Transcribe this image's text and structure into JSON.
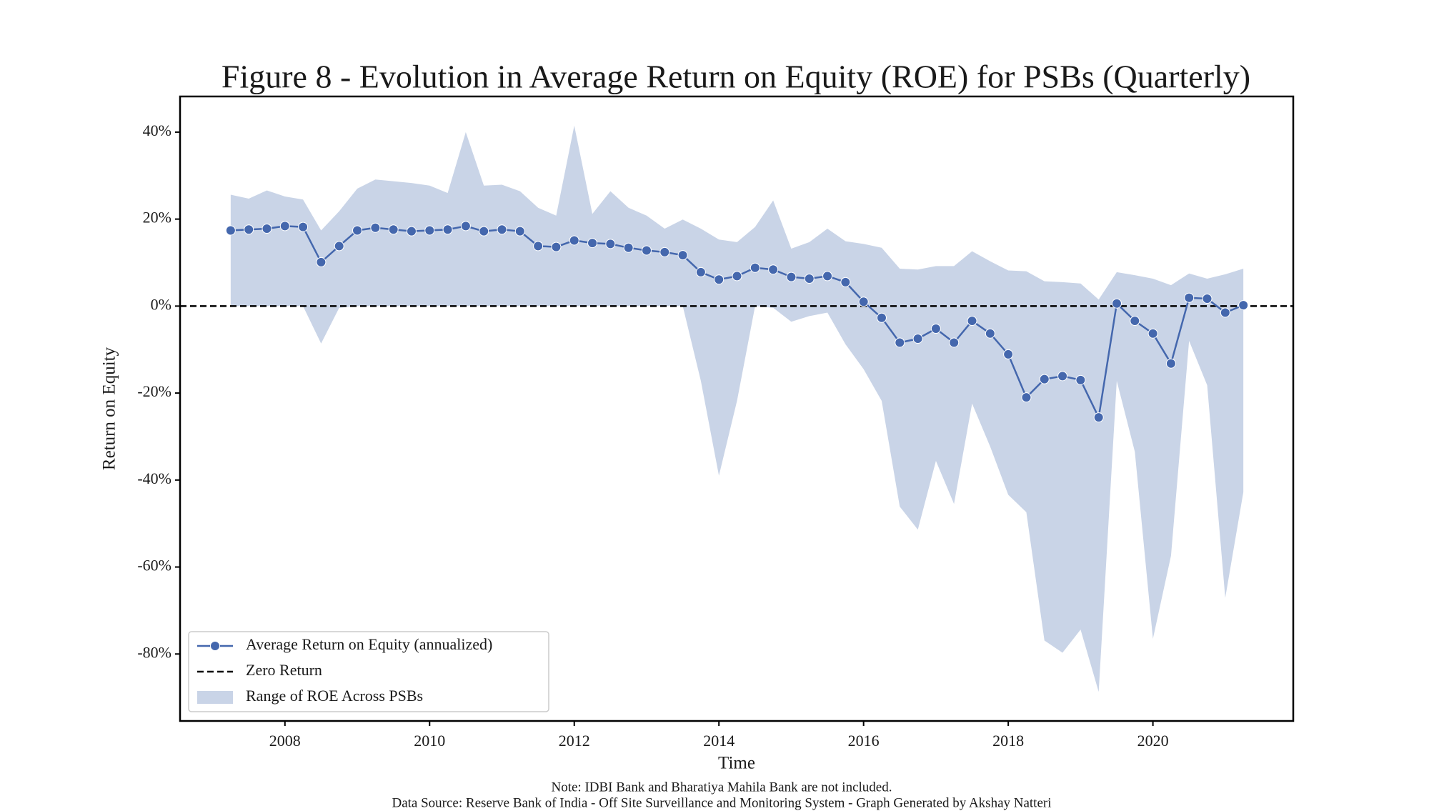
{
  "chart_data": {
    "type": "line",
    "title": "Figure 8 - Evolution in Average Return on Equity (ROE) for PSBs (Quarterly)",
    "xlabel": "Time",
    "ylabel": "Return on Equity",
    "notes": [
      "Note: IDBI Bank and Bharatiya Mahila Bank are not included.",
      "Data Source: Reserve Bank of India - Off Site Surveillance and Monitoring System - Graph Generated by Akshay Natteri"
    ],
    "x": [
      2007.25,
      2007.5,
      2007.75,
      2008.0,
      2008.25,
      2008.5,
      2008.75,
      2009.0,
      2009.25,
      2009.5,
      2009.75,
      2010.0,
      2010.25,
      2010.5,
      2010.75,
      2011.0,
      2011.25,
      2011.5,
      2011.75,
      2012.0,
      2012.25,
      2012.5,
      2012.75,
      2013.0,
      2013.25,
      2013.5,
      2013.75,
      2014.0,
      2014.25,
      2014.5,
      2014.75,
      2015.0,
      2015.25,
      2015.5,
      2015.75,
      2016.0,
      2016.25,
      2016.5,
      2016.75,
      2017.0,
      2017.25,
      2017.5,
      2017.75,
      2018.0,
      2018.25,
      2018.5,
      2018.75,
      2019.0,
      2019.25,
      2019.5,
      2019.75,
      2020.0,
      2020.25,
      2020.5,
      2020.75,
      2021.0,
      2021.25
    ],
    "series": [
      {
        "name": "Average Return on Equity (annualized)",
        "color": "#4467ad",
        "values": [
          17.4,
          17.6,
          17.8,
          18.4,
          18.2,
          10.1,
          13.8,
          17.4,
          18.0,
          17.6,
          17.2,
          17.4,
          17.6,
          18.4,
          17.2,
          17.6,
          17.2,
          13.8,
          13.6,
          15.1,
          14.5,
          14.3,
          13.4,
          12.8,
          12.4,
          11.7,
          7.8,
          6.1,
          6.9,
          8.8,
          8.4,
          6.7,
          6.3,
          6.9,
          5.5,
          1.0,
          -2.7,
          -8.4,
          -7.5,
          -5.2,
          -8.4,
          -3.4,
          -6.3,
          -11.1,
          -21.0,
          -16.8,
          -16.1,
          -17.0,
          -25.6,
          0.6,
          -3.4,
          -6.3,
          -13.2,
          1.9,
          1.7,
          -1.5,
          0.2
        ]
      }
    ],
    "band": {
      "name": "Range of ROE Across PSBs",
      "color": "#c9d4e7",
      "upper": [
        25.6,
        24.7,
        26.6,
        25.2,
        24.5,
        17.4,
        21.8,
        27.0,
        29.1,
        28.7,
        28.3,
        27.7,
        26.0,
        40.0,
        27.7,
        27.9,
        26.4,
        22.6,
        20.8,
        41.5,
        21.2,
        26.4,
        22.6,
        20.8,
        17.8,
        19.9,
        17.8,
        15.3,
        14.7,
        18.2,
        24.3,
        13.2,
        14.7,
        17.8,
        14.9,
        14.3,
        13.4,
        8.6,
        8.4,
        9.2,
        9.2,
        12.6,
        10.3,
        8.2,
        8.0,
        5.7,
        5.5,
        5.2,
        1.5,
        7.8,
        7.1,
        6.3,
        4.8,
        7.5,
        6.3,
        7.3,
        8.6
      ],
      "lower": [
        0,
        0,
        0,
        0,
        0,
        -8.6,
        -0.4,
        0,
        0,
        0,
        0,
        0,
        0,
        0,
        0,
        0,
        0,
        0,
        0,
        0,
        0,
        0,
        0,
        0,
        0,
        0,
        -17.2,
        -39.0,
        -21.8,
        0,
        -0.4,
        -3.6,
        -2.3,
        -1.5,
        -8.8,
        -14.5,
        -21.8,
        -46.1,
        -51.4,
        -35.6,
        -45.5,
        -22.4,
        -32.3,
        -43.4,
        -47.4,
        -76.9,
        -79.7,
        -74.4,
        -88.7,
        -17.2,
        -33.5,
        -76.5,
        -57.4,
        -8.0,
        -18.2,
        -67.1,
        -42.8
      ]
    },
    "reference_line": {
      "name": "Zero Return",
      "value": 0,
      "color": "#000000"
    },
    "xlim": [
      2006.55,
      2021.94
    ],
    "ylim": [
      -95.4,
      48.2
    ],
    "xticks": [
      2008,
      2010,
      2012,
      2014,
      2016,
      2018,
      2020
    ],
    "yticks": [
      {
        "value": 40,
        "label": "40%"
      },
      {
        "value": 20,
        "label": "20%"
      },
      {
        "value": 0,
        "label": "0%"
      },
      {
        "value": -20,
        "label": "-20%"
      },
      {
        "value": -40,
        "label": "-40%"
      },
      {
        "value": -60,
        "label": "-60%"
      },
      {
        "value": -80,
        "label": "-80%"
      }
    ],
    "legend": "lower left"
  }
}
